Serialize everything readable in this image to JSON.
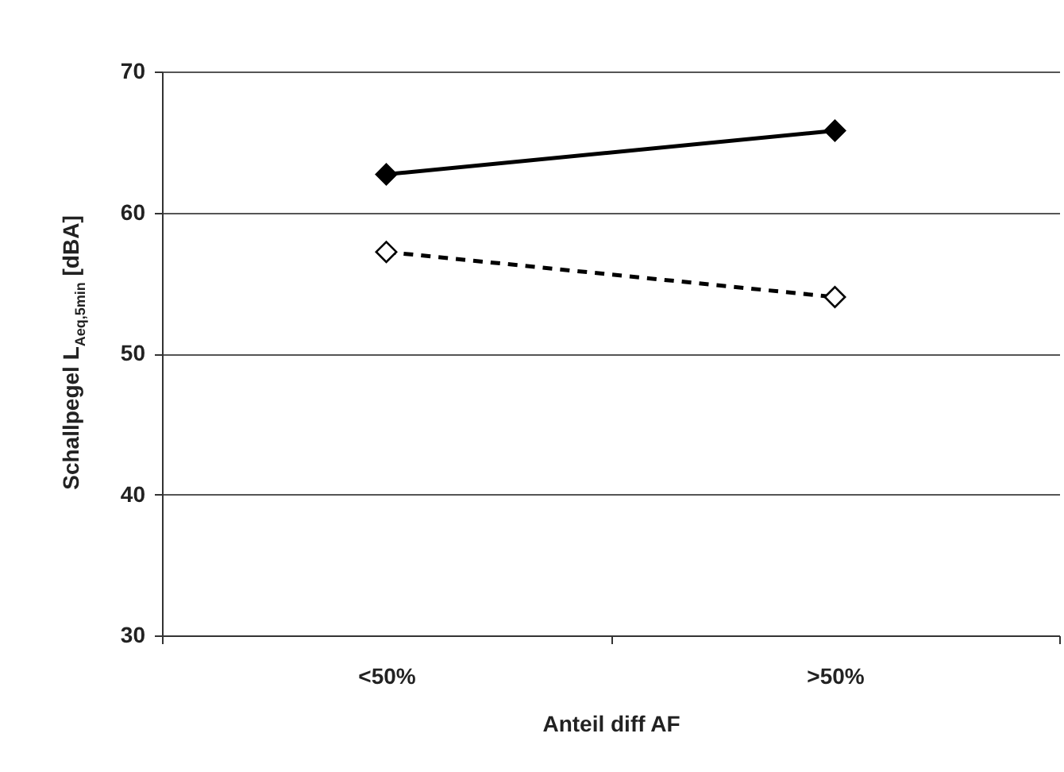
{
  "chart_data": {
    "type": "line",
    "xlabel": "Anteil diff AF",
    "ylabel": "Schallpegel L$_{Aeq,5min}$ [dBA]",
    "categories": [
      "<50%",
      ">50%"
    ],
    "series": [
      {
        "color": "#000000",
        "line_style": "solid",
        "values": [
          62.7,
          65.8
        ]
      },
      {
        "color": "#000000",
        "line_style": "dashed",
        "values": [
          57.2,
          54.0
        ]
      }
    ],
    "marker": "diamond",
    "ylim": [
      30,
      70
    ],
    "yticks": [
      30,
      40,
      50,
      60,
      70
    ],
    "grid": "y"
  }
}
